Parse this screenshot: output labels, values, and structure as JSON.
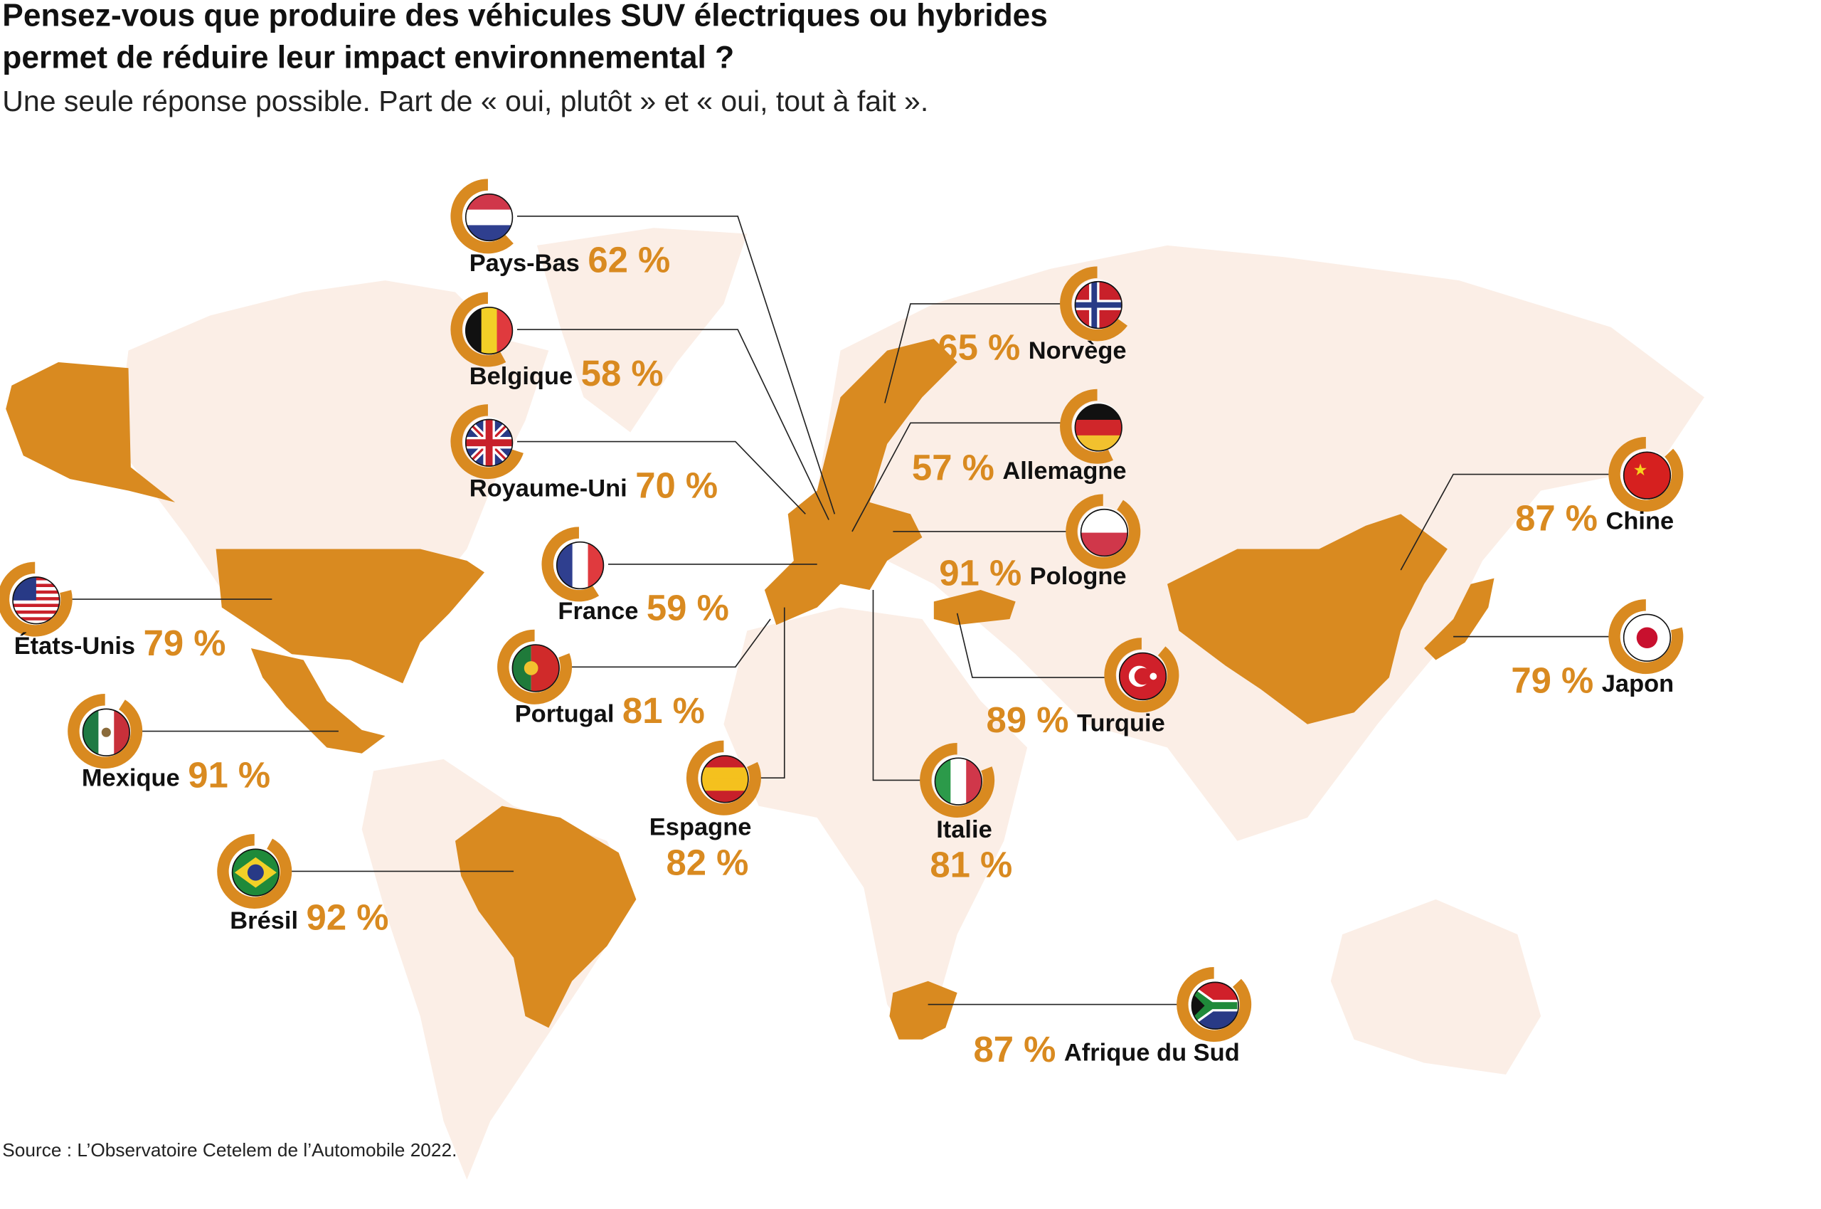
{
  "title_lines": [
    "Pensez-vous que produire des véhicules SUV électriques ou hybrides",
    "permet de réduire leur impact environnemental ?"
  ],
  "subtitle": "Une seule réponse possible. Part de « oui, plutôt » et « oui, tout à fait ».",
  "source": "Source : L’Observatoire Cetelem de l’Automobile 2022.",
  "colors": {
    "accent": "#d98a20",
    "land": "#fbeee6",
    "text": "#111111"
  },
  "chart_data": {
    "type": "map",
    "title": "Pensez-vous que produire des véhicules SUV électriques ou hybrides permet de réduire leur impact environnemental ?",
    "unit": "%",
    "countries": [
      {
        "name": "Pays-Bas",
        "value": 62,
        "pct_label": "62 %",
        "flag": "nl"
      },
      {
        "name": "Belgique",
        "value": 58,
        "pct_label": "58 %",
        "flag": "be"
      },
      {
        "name": "Royaume-Uni",
        "value": 70,
        "pct_label": "70 %",
        "flag": "uk"
      },
      {
        "name": "France",
        "value": 59,
        "pct_label": "59 %",
        "flag": "fr"
      },
      {
        "name": "Portugal",
        "value": 81,
        "pct_label": "81 %",
        "flag": "pt"
      },
      {
        "name": "Espagne",
        "value": 82,
        "pct_label": "82 %",
        "flag": "es"
      },
      {
        "name": "États-Unis",
        "value": 79,
        "pct_label": "79 %",
        "flag": "us"
      },
      {
        "name": "Mexique",
        "value": 91,
        "pct_label": "91 %",
        "flag": "mx"
      },
      {
        "name": "Brésil",
        "value": 92,
        "pct_label": "92 %",
        "flag": "br"
      },
      {
        "name": "Norvège",
        "value": 65,
        "pct_label": "65 %",
        "flag": "no"
      },
      {
        "name": "Allemagne",
        "value": 57,
        "pct_label": "57 %",
        "flag": "de"
      },
      {
        "name": "Pologne",
        "value": 91,
        "pct_label": "91 %",
        "flag": "pl"
      },
      {
        "name": "Turquie",
        "value": 89,
        "pct_label": "89 %",
        "flag": "tr"
      },
      {
        "name": "Italie",
        "value": 81,
        "pct_label": "81 %",
        "flag": "it"
      },
      {
        "name": "Chine",
        "value": 87,
        "pct_label": "87 %",
        "flag": "cn"
      },
      {
        "name": "Japon",
        "value": 79,
        "pct_label": "79 %",
        "flag": "jp"
      },
      {
        "name": "Afrique du Sud",
        "value": 87,
        "pct_label": "87 %",
        "flag": "za"
      }
    ]
  }
}
